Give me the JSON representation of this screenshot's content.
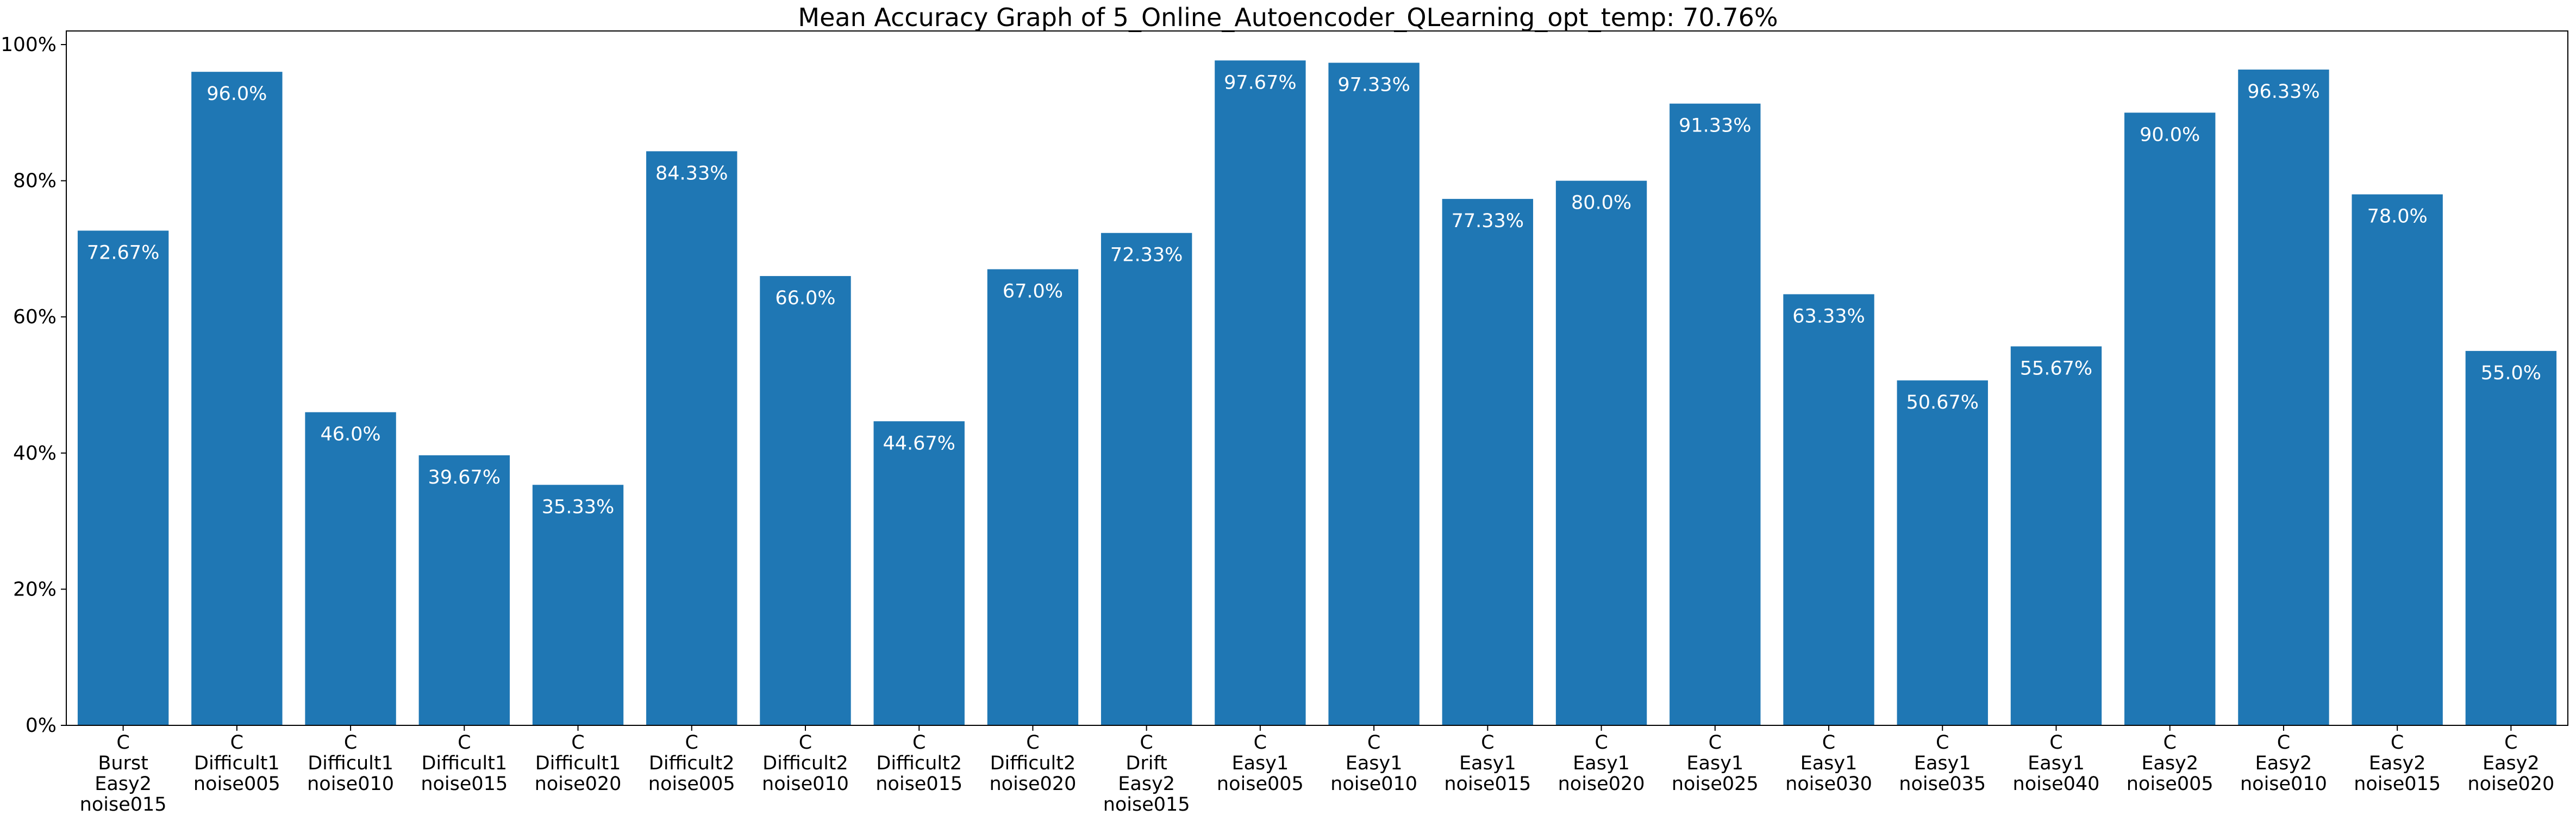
{
  "chart_data": {
    "type": "bar",
    "title": "Mean Accuracy Graph of 5_Online_Autoencoder_QLearning_opt_temp: 70.76%",
    "xlabel": "",
    "ylabel": "",
    "ylim": [
      0,
      1.02
    ],
    "yticks": [
      {
        "value": 0.0,
        "label": "0%"
      },
      {
        "value": 0.2,
        "label": "20%"
      },
      {
        "value": 0.4,
        "label": "40%"
      },
      {
        "value": 0.6,
        "label": "60%"
      },
      {
        "value": 0.8,
        "label": "80%"
      },
      {
        "value": 1.0,
        "label": "100%"
      }
    ],
    "grid": false,
    "bar_color": "#1f77b4",
    "data_label_color": "#ffffff",
    "categories": [
      [
        "C",
        "Burst",
        "Easy2",
        "noise015"
      ],
      [
        "C",
        "Difficult1",
        "noise005"
      ],
      [
        "C",
        "Difficult1",
        "noise010"
      ],
      [
        "C",
        "Difficult1",
        "noise015"
      ],
      [
        "C",
        "Difficult1",
        "noise020"
      ],
      [
        "C",
        "Difficult2",
        "noise005"
      ],
      [
        "C",
        "Difficult2",
        "noise010"
      ],
      [
        "C",
        "Difficult2",
        "noise015"
      ],
      [
        "C",
        "Difficult2",
        "noise020"
      ],
      [
        "C",
        "Drift",
        "Easy2",
        "noise015"
      ],
      [
        "C",
        "Easy1",
        "noise005"
      ],
      [
        "C",
        "Easy1",
        "noise010"
      ],
      [
        "C",
        "Easy1",
        "noise015"
      ],
      [
        "C",
        "Easy1",
        "noise020"
      ],
      [
        "C",
        "Easy1",
        "noise025"
      ],
      [
        "C",
        "Easy1",
        "noise030"
      ],
      [
        "C",
        "Easy1",
        "noise035"
      ],
      [
        "C",
        "Easy1",
        "noise040"
      ],
      [
        "C",
        "Easy2",
        "noise005"
      ],
      [
        "C",
        "Easy2",
        "noise010"
      ],
      [
        "C",
        "Easy2",
        "noise015"
      ],
      [
        "C",
        "Easy2",
        "noise020"
      ]
    ],
    "values": [
      0.7267,
      0.96,
      0.46,
      0.3967,
      0.3533,
      0.8433,
      0.66,
      0.4467,
      0.67,
      0.7233,
      0.9767,
      0.9733,
      0.7733,
      0.8,
      0.9133,
      0.6333,
      0.5067,
      0.5567,
      0.9,
      0.9633,
      0.78,
      0.55
    ],
    "data_labels": [
      "72.67%",
      "96.0%",
      "46.0%",
      "39.67%",
      "35.33%",
      "84.33%",
      "66.0%",
      "44.67%",
      "67.0%",
      "72.33%",
      "97.67%",
      "97.33%",
      "77.33%",
      "80.0%",
      "91.33%",
      "63.33%",
      "50.67%",
      "55.67%",
      "90.0%",
      "96.33%",
      "78.0%",
      "55.0%"
    ]
  }
}
